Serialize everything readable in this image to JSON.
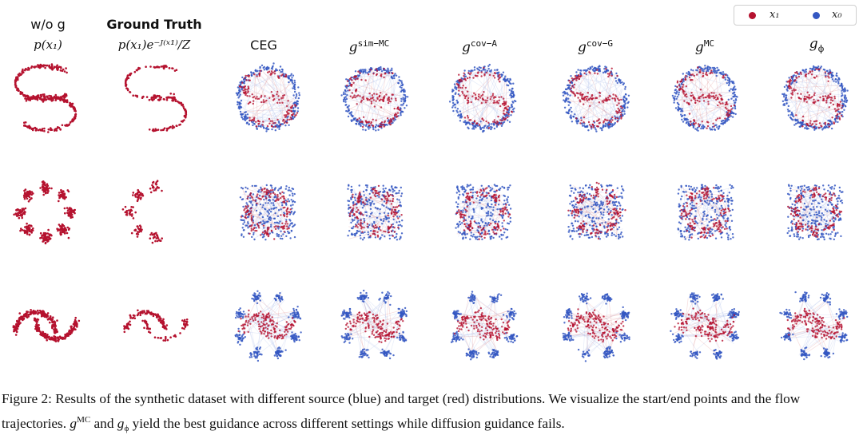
{
  "legend": {
    "x1": {
      "label": "x₁",
      "color": "#b5122f"
    },
    "x0": {
      "label": "x₀",
      "color": "#3457c2"
    }
  },
  "columns": {
    "wog": {
      "line1": "w/o g",
      "line2": "p(x₁)"
    },
    "gt": {
      "line1": "Ground Truth",
      "line2": "p(x₁)e⁻ᴶ⁽ˣ¹⁾/Z"
    },
    "ceg": {
      "line1": "CEG"
    },
    "simmc": {
      "base": "g",
      "sup": "sim−MC"
    },
    "cova": {
      "base": "g",
      "sup": "cov−A"
    },
    "covg": {
      "base": "g",
      "sup": "cov−G"
    },
    "mc": {
      "base": "g",
      "sup": "MC"
    },
    "phi": {
      "base": "g",
      "sub": "ϕ"
    }
  },
  "caption": {
    "p1": "Figure 2: Results of the synthetic dataset with different source (blue) and target (red) distributions. We visualize the start/end points and the flow trajectories.",
    "g1": "g",
    "s1": "MC",
    "and": "and",
    "g2": "g",
    "s2": "ϕ",
    "p2": "yield the best guidance across different settings while diffusion guidance fails."
  },
  "colors": {
    "red": "#b5122f",
    "blue": "#3457c2",
    "traj": "#9fb4e6"
  }
}
